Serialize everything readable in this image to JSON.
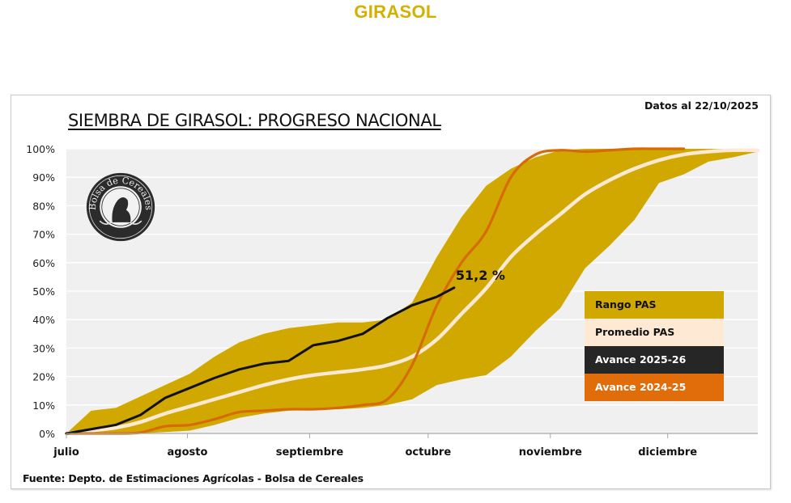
{
  "header": {
    "title": "GIRASOL"
  },
  "chart_header": {
    "title": "SIEMBRA DE GIRASOL: PROGRESO NACIONAL",
    "date_label": "Datos al 22/10/2025"
  },
  "logo": {
    "text": "Bolsa de Cereales",
    "subtext": "Buenos Aires"
  },
  "footer": {
    "source": "Fuente: Depto. de Estimaciones Agrícolas - Bolsa de Cereales"
  },
  "colors": {
    "range": "#d0a800",
    "average": "#fde9d4",
    "current": "#111111",
    "previous": "#d66b06",
    "plot_bg": "#f0f0f0",
    "grid": "#ffffff",
    "title": "#d4b000"
  },
  "legend": [
    {
      "label": "Rango PAS",
      "bg": "#d0a800",
      "fg": "#111111"
    },
    {
      "label": "Promedio PAS",
      "bg": "#fde9d4",
      "fg": "#111111"
    },
    {
      "label": "Avance 2025-26",
      "bg": "#262626",
      "fg": "#ffffff"
    },
    {
      "label": "Avance 2024-25",
      "bg": "#e06c0a",
      "fg": "#ffffff"
    }
  ],
  "chart_data": {
    "type": "area",
    "title": "SIEMBRA DE GIRASOL: PROGRESO NACIONAL",
    "xlabel": "",
    "ylabel": "",
    "x_unit": "weeks since start of July",
    "xlim": [
      0,
      28
    ],
    "ylim": [
      0,
      100
    ],
    "yticks": [
      0,
      10,
      20,
      30,
      40,
      50,
      60,
      70,
      80,
      90,
      100
    ],
    "ytick_labels": [
      "0%",
      "10%",
      "20%",
      "30%",
      "40%",
      "50%",
      "60%",
      "70%",
      "80%",
      "90%",
      "100%"
    ],
    "xticks": [
      {
        "label": "julio",
        "week": 0
      },
      {
        "label": "agosto",
        "week": 4.9
      },
      {
        "label": "septiembre",
        "week": 9.85
      },
      {
        "label": "octubre",
        "week": 14.65
      },
      {
        "label": "noviembre",
        "week": 19.6
      },
      {
        "label": "diciembre",
        "week": 24.35
      }
    ],
    "grid": true,
    "legend_position": "right-middle",
    "series": [
      {
        "name": "Rango PAS",
        "kind": "band",
        "x": [
          0,
          1,
          2,
          3,
          4,
          5,
          6,
          7,
          8,
          9,
          10,
          11,
          12,
          13,
          14,
          15,
          16,
          17,
          18,
          19,
          20,
          21,
          22,
          23,
          24,
          25,
          26,
          27,
          28
        ],
        "upper": [
          0,
          8,
          9,
          13,
          17,
          21,
          27,
          32,
          35,
          37,
          38,
          39,
          39,
          40,
          46,
          62,
          76,
          87,
          93,
          97,
          99.5,
          100,
          100,
          100,
          100,
          100,
          100,
          100,
          99.5
        ],
        "lower": [
          0,
          0,
          0,
          0,
          0.5,
          1,
          3,
          5.5,
          7,
          8,
          8.5,
          8.5,
          9,
          10,
          12,
          17,
          19,
          20.5,
          27,
          36,
          44,
          58,
          66,
          75,
          88,
          91,
          95.5,
          97,
          99
        ]
      },
      {
        "name": "Promedio PAS",
        "kind": "line",
        "x": [
          0,
          1,
          2,
          3,
          4,
          5,
          6,
          7,
          8,
          9,
          10,
          11,
          12,
          13,
          14,
          15,
          16,
          17,
          18,
          19,
          20,
          21,
          22,
          23,
          24,
          25,
          26,
          27,
          28
        ],
        "y": [
          0,
          1,
          2,
          4,
          7,
          9.5,
          12,
          14.5,
          17,
          19,
          20.5,
          21.5,
          22.5,
          24,
          27,
          33,
          42,
          51,
          62,
          70,
          77,
          84,
          89,
          93,
          96,
          98,
          99,
          99.5,
          99.5
        ]
      },
      {
        "name": "Avance 2025-26",
        "kind": "line",
        "x": [
          0,
          1,
          2,
          3,
          4,
          5,
          6,
          7,
          8,
          9,
          10,
          11,
          12,
          13,
          14,
          15,
          15.7
        ],
        "y": [
          0,
          1.5,
          3,
          6.5,
          12.5,
          16,
          19.5,
          22.5,
          24.5,
          25.5,
          31,
          32.5,
          35,
          40.5,
          45,
          48,
          51.2
        ]
      },
      {
        "name": "Avance 2024-25",
        "kind": "line",
        "x": [
          0,
          1,
          2,
          3,
          4,
          5,
          6,
          7,
          8,
          9,
          10,
          11,
          12,
          13,
          14,
          15,
          16,
          17,
          18,
          19,
          20,
          21,
          22,
          23,
          24,
          25
        ],
        "y": [
          0,
          0,
          0,
          0.3,
          2.5,
          3,
          5,
          7.5,
          8,
          8.5,
          8.5,
          9,
          10,
          12,
          24,
          45,
          60,
          71,
          90,
          98,
          99.5,
          99,
          99.5,
          100,
          100,
          100
        ]
      }
    ],
    "annotations": [
      {
        "text": "51,2 %",
        "series": "Avance 2025-26",
        "week": 15.7,
        "value": 51.2
      }
    ]
  }
}
